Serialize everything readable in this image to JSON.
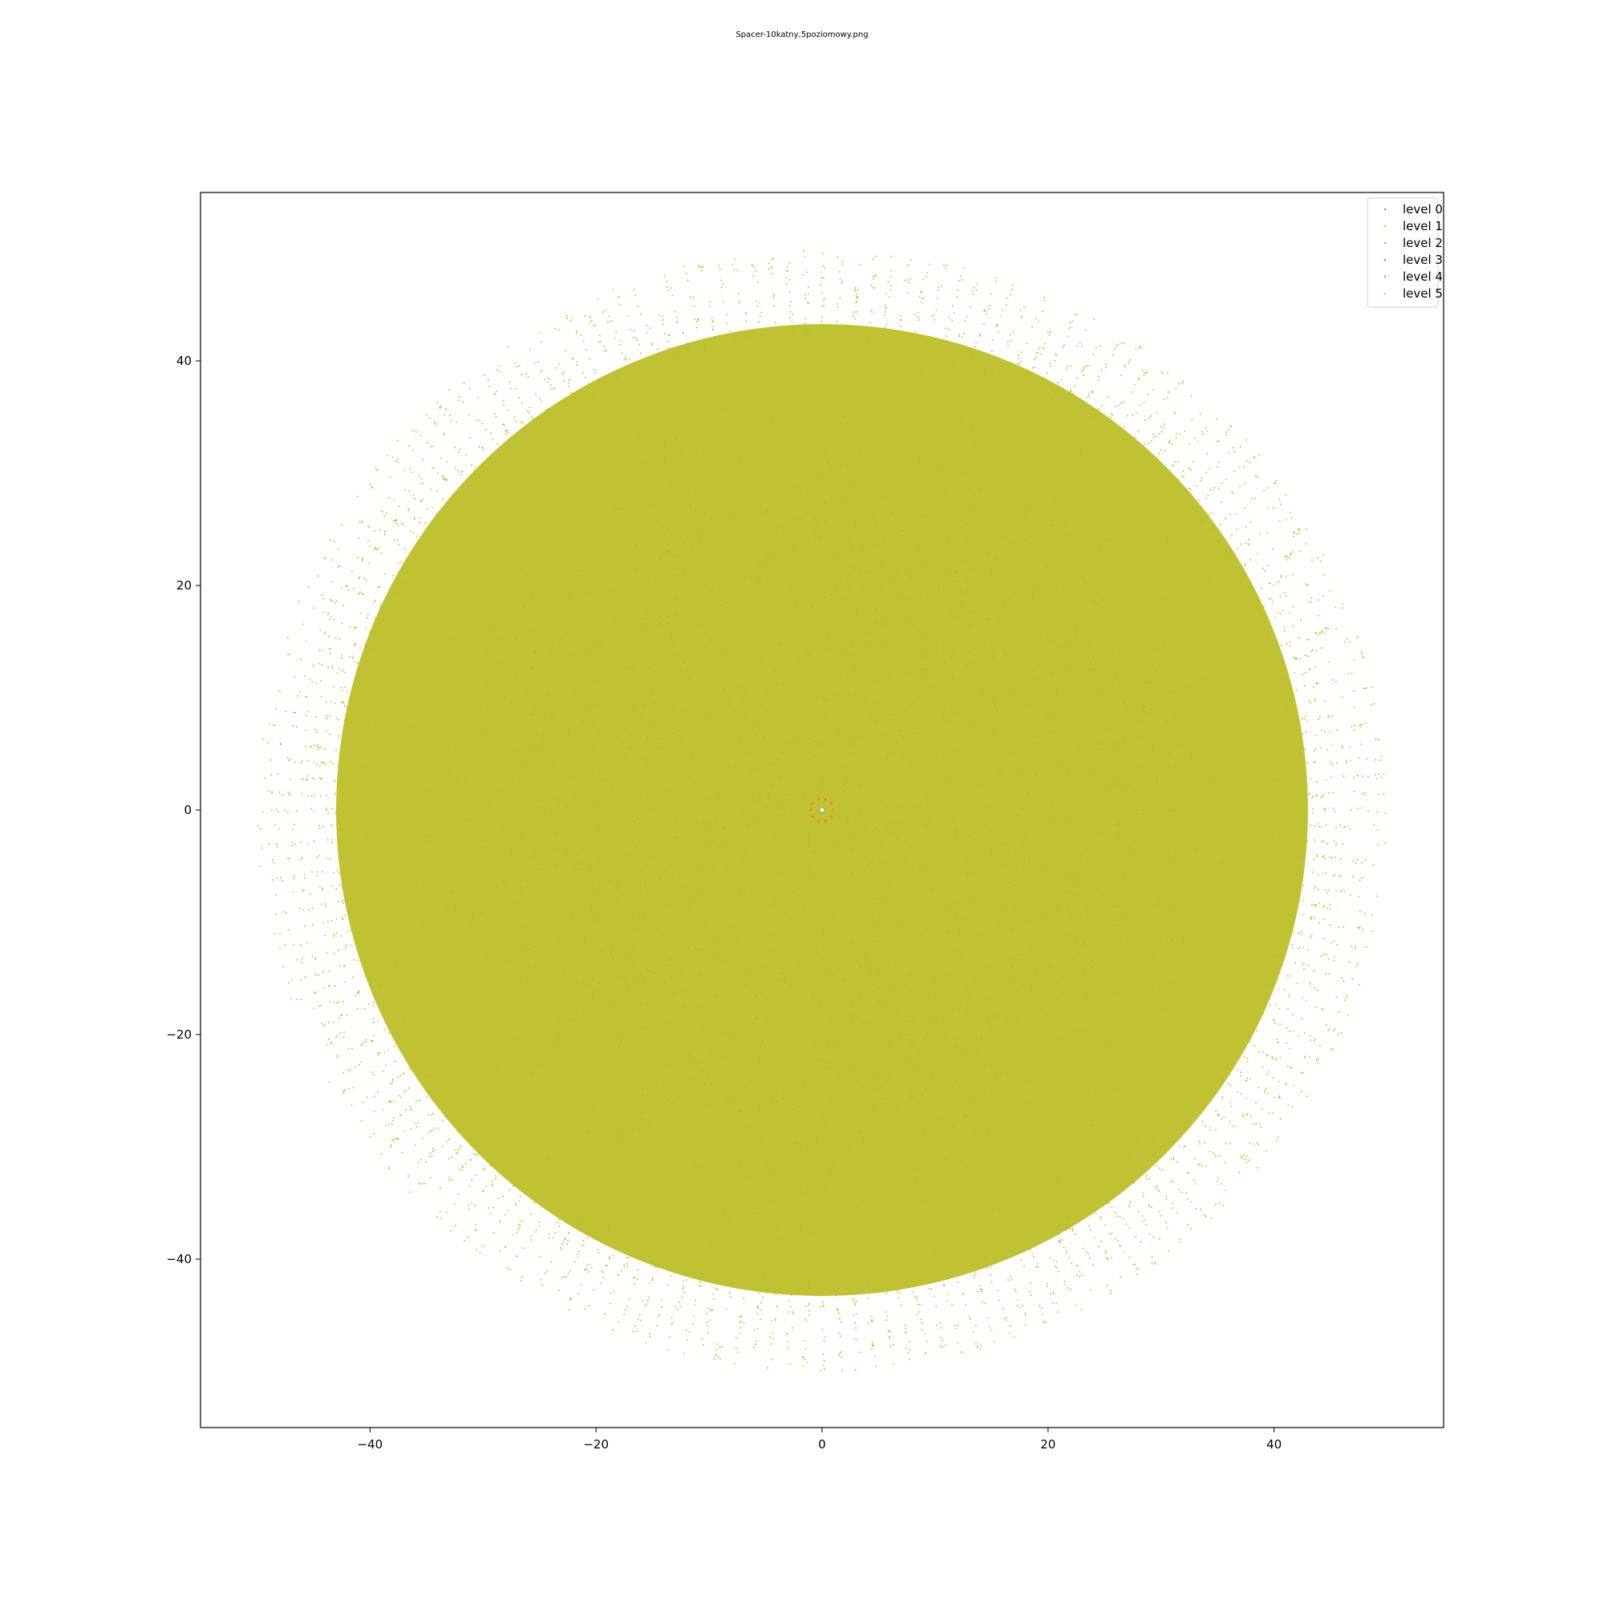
{
  "figure": {
    "title": "Spacer-10katny,5poziomowy.png"
  },
  "chart_data": {
    "type": "scatter",
    "title": "Spacer-10katny,5poziomowy.png",
    "xlabel": "",
    "ylabel": "",
    "xlim": [
      -55,
      55
    ],
    "ylim": [
      -55,
      55
    ],
    "xticks": [
      -40,
      -20,
      0,
      20,
      40
    ],
    "yticks": [
      -40,
      -20,
      0,
      20,
      40
    ],
    "grid": false,
    "legend_position": "top-right",
    "symmetry": "10-fold rotational",
    "max_radius": 50,
    "series": [
      {
        "name": "level 0",
        "color": "#1f77b4",
        "points": [
          [
            0,
            0
          ]
        ]
      },
      {
        "name": "level 1",
        "color": "#ff7f0e",
        "points": [
          [
            1,
            0
          ],
          [
            0.809,
            0.588
          ],
          [
            0.309,
            0.951
          ],
          [
            -0.309,
            0.951
          ],
          [
            -0.809,
            0.588
          ],
          [
            -1,
            0
          ],
          [
            -0.809,
            -0.588
          ],
          [
            -0.309,
            -0.951
          ],
          [
            0.309,
            -0.951
          ],
          [
            0.809,
            -0.588
          ]
        ]
      },
      {
        "name": "level 2",
        "color": "#2ca02c",
        "points": []
      },
      {
        "name": "level 3",
        "color": "#d62728",
        "points": []
      },
      {
        "name": "level 4",
        "color": "#9467bd",
        "points": []
      },
      {
        "name": "level 5",
        "color": "#bcbd22",
        "points": []
      }
    ]
  }
}
